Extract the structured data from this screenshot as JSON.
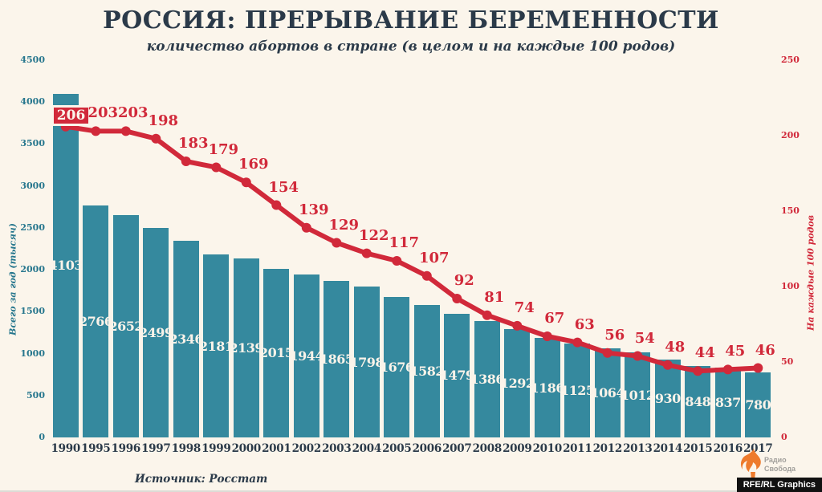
{
  "header": {
    "title": "РОССИЯ: ПРЕРЫВАНИЕ БЕРЕМЕННОСТИ",
    "subtitle": "количество абортов в стране (в целом и на каждые 100 родов)"
  },
  "chart_data": {
    "type": "bar",
    "title": "РОССИЯ: ПРЕРЫВАНИЕ БЕРЕМЕННОСТИ",
    "subtitle": "количество абортов в стране (в целом и на каждые 100 родов)",
    "categories": [
      "1990",
      "1995",
      "1996",
      "1997",
      "1998",
      "1999",
      "2000",
      "2001",
      "2002",
      "2003",
      "2004",
      "2005",
      "2006",
      "2007",
      "2008",
      "2009",
      "2010",
      "2011",
      "2012",
      "2013",
      "2014",
      "2015",
      "2016",
      "2017"
    ],
    "series": [
      {
        "name": "Всего за год (тысяч)",
        "type": "bar",
        "axis": "left",
        "color": "#35899E",
        "values": [
          4103,
          2766,
          2652,
          2499,
          2346,
          2181,
          2139,
          2015,
          1944,
          1865,
          1798,
          1676,
          1582,
          1479,
          1386,
          1292,
          1186,
          1125,
          1064,
          1012,
          930,
          848,
          837,
          780
        ]
      },
      {
        "name": "На каждые 100 родов",
        "type": "line",
        "axis": "right",
        "color": "#D1293A",
        "values": [
          206,
          203,
          203,
          198,
          183,
          179,
          169,
          154,
          139,
          129,
          122,
          117,
          107,
          92,
          81,
          74,
          67,
          63,
          56,
          54,
          48,
          44,
          45,
          46
        ]
      }
    ],
    "left_axis": {
      "label": "Всего за год (тысяч)",
      "min": 0,
      "max": 4500,
      "step": 500,
      "tick_color": "#26768D"
    },
    "right_axis": {
      "label": "На каждые 100 родов",
      "min": 0,
      "max": 250,
      "step": 50,
      "tick_color": "#D1293A"
    },
    "grid": false,
    "legend": "none",
    "bar_label_color": "#FAF3E9",
    "first_line_label_boxed": true,
    "background": "#FBF5EB"
  },
  "footer": {
    "source": "Источник: Росстат",
    "logo": {
      "line1": "Радио",
      "line2": "Свобода",
      "flame_color": "#EE7B2D",
      "credit": "RFE/RL Graphics"
    }
  }
}
